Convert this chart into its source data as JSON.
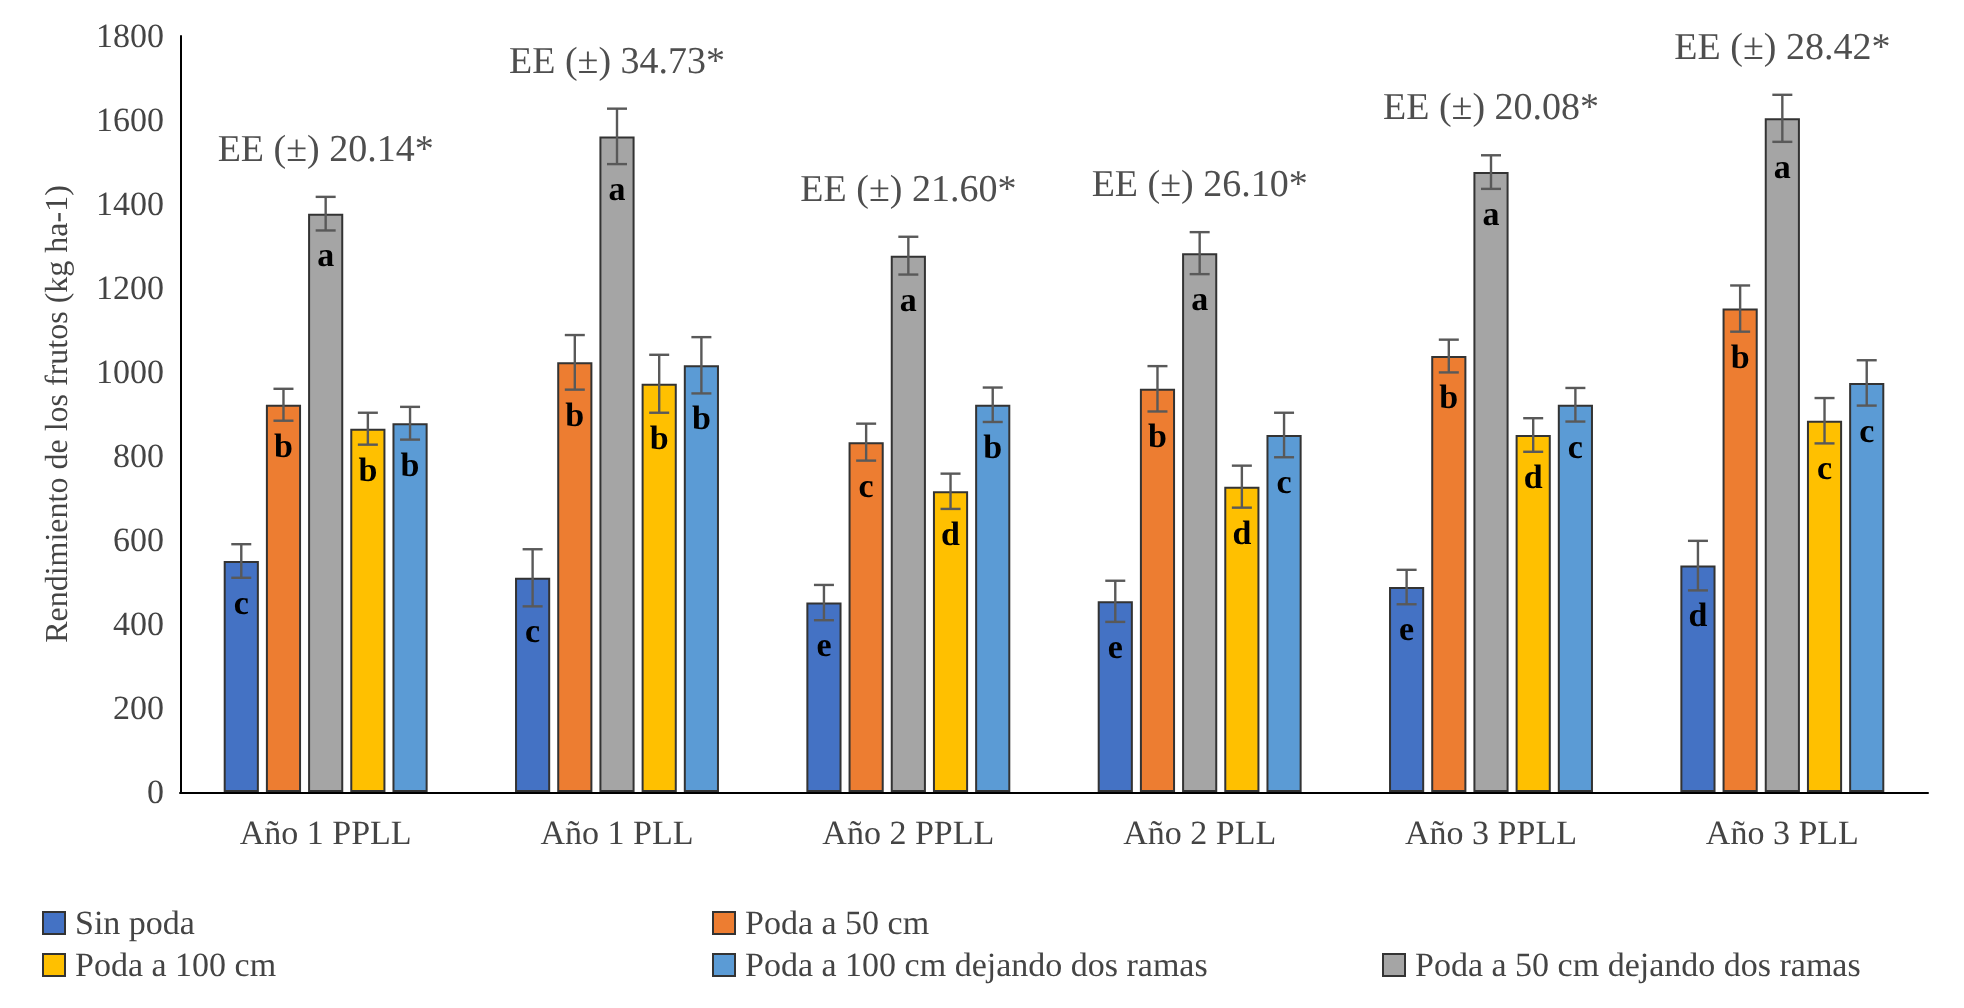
{
  "chart_data": {
    "type": "bar",
    "ylabel": "Rendimiento de los frutos (kg ha-1)",
    "categories": [
      "Año 1 PPLL",
      "Año 1 PLL",
      "Año 2 PPLL",
      "Año 2 PLL",
      "Año 3 PPLL",
      "Año 3 PLL"
    ],
    "ylim": [
      0,
      1800
    ],
    "yticks": [
      0,
      200,
      400,
      600,
      800,
      1000,
      1200,
      1400,
      1600,
      1800
    ],
    "grid": false,
    "legend": "bottom",
    "series": [
      {
        "name": "Sin poda",
        "color": "#4472c4",
        "values": [
          550,
          510,
          451,
          454,
          488,
          539
        ],
        "errors": [
          40,
          68,
          42,
          49,
          41,
          59
        ],
        "value_labels": [
          "c",
          "c",
          "e",
          "e",
          "e",
          "d"
        ]
      },
      {
        "name": "Poda a 50 cm",
        "color": "#ed7d31",
        "values": [
          922,
          1023,
          833,
          960,
          1038,
          1151
        ],
        "errors": [
          38,
          65,
          44,
          54,
          39,
          55
        ],
        "value_labels": [
          "b",
          "b",
          "c",
          "b",
          "b",
          "b"
        ]
      },
      {
        "name": "Poda a 50 cm dejando dos ramas",
        "color": "#a5a5a5",
        "values": [
          1377,
          1561,
          1277,
          1283,
          1476,
          1604
        ],
        "errors": [
          40,
          66,
          45,
          50,
          40,
          56
        ],
        "value_labels": [
          "a",
          "a",
          "a",
          "a",
          "a",
          "a"
        ]
      },
      {
        "name": "Poda a 100 cm",
        "color": "#ffc000",
        "values": [
          865,
          972,
          716,
          727,
          850,
          884
        ],
        "errors": [
          38,
          69,
          42,
          50,
          40,
          54
        ],
        "value_labels": [
          "b",
          "b",
          "d",
          "d",
          "d",
          "c"
        ]
      },
      {
        "name": "Poda a 100 cm dejando dos ramas",
        "color": "#5b9bd5",
        "values": [
          878,
          1016,
          922,
          850,
          922,
          974
        ],
        "errors": [
          39,
          67,
          41,
          53,
          40,
          54
        ],
        "value_labels": [
          "b",
          "b",
          "b",
          "c",
          "c",
          "c"
        ]
      }
    ],
    "annotations": [
      "EE (±) 20.14*",
      "EE (±) 34.73*",
      "EE (±) 21.60*",
      "EE (±) 26.10*",
      "EE (±) 20.08*",
      "EE (±) 28.42*"
    ]
  }
}
